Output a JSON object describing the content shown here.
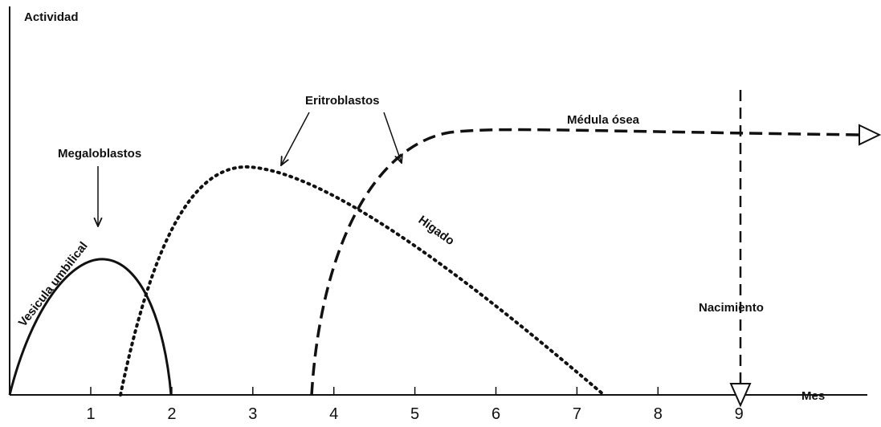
{
  "y_axis": {
    "label": "Actividad"
  },
  "x_axis": {
    "label": "Mes",
    "ticks": [
      "1",
      "2",
      "3",
      "4",
      "5",
      "6",
      "7",
      "8",
      "9"
    ]
  },
  "annotations": {
    "megaloblastos": "Megaloblastos",
    "eritroblastos": "Eritroblastos",
    "medula": "Médula ósea",
    "higado": "Higado",
    "vesicula": "Vesicula umbilical",
    "nacimiento": "Nacimiento"
  }
}
